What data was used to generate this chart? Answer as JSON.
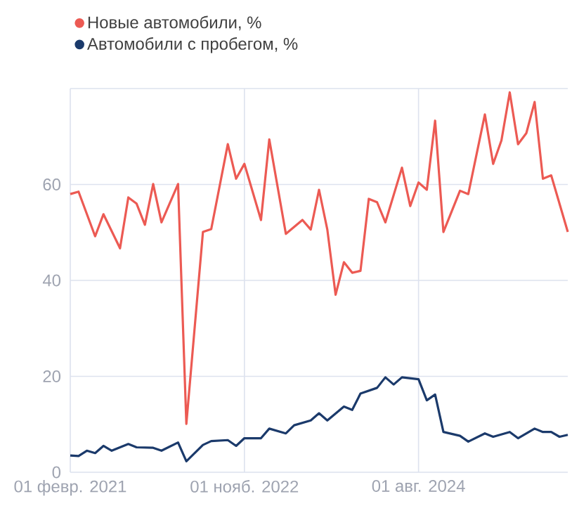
{
  "chart_data": {
    "type": "line",
    "x": [
      "2021-02",
      "2021-03",
      "2021-05",
      "2021-06",
      "2021-08",
      "2021-09",
      "2021-10",
      "2021-11",
      "2021-12",
      "2022-01",
      "2022-03",
      "2022-04",
      "2022-06",
      "2022-07",
      "2022-09",
      "2022-10",
      "2022-11",
      "2023-01",
      "2023-02",
      "2023-04",
      "2023-06",
      "2023-07",
      "2023-08",
      "2023-09",
      "2023-10",
      "2023-11",
      "2023-12",
      "2024-01",
      "2024-02",
      "2024-03",
      "2024-04",
      "2024-06",
      "2024-07",
      "2024-08",
      "2024-09",
      "2024-10",
      "2024-11",
      "2025-01",
      "2025-02",
      "2025-04",
      "2025-05",
      "2025-06",
      "2025-07",
      "2025-08",
      "2025-09",
      "2025-10",
      "2025-11",
      "2025-12",
      "2026-02"
    ],
    "series": [
      {
        "name": "Новые автомобили, %",
        "color": "#ec5a53",
        "values": [
          58.0,
          58.5,
          49.2,
          53.8,
          46.7,
          57.3,
          56.0,
          51.6,
          60.1,
          52.1,
          60.1,
          10.1,
          50.1,
          50.7,
          68.4,
          61.2,
          64.3,
          52.6,
          69.4,
          49.7,
          52.6,
          50.6,
          58.9,
          50.6,
          37.0,
          43.8,
          41.6,
          42.0,
          57.0,
          56.3,
          52.1,
          63.5,
          55.5,
          60.4,
          58.9,
          73.3,
          50.1,
          58.7,
          58.0,
          74.6,
          64.3,
          69.2,
          79.2,
          68.4,
          70.7,
          77.2,
          61.2,
          61.9,
          50.1
        ]
      },
      {
        "name": "Автомобили с пробегом, %",
        "color": "#1b3a6b",
        "x": [
          "2021-02",
          "2021-03",
          "2021-04",
          "2021-05",
          "2021-06",
          "2021-07",
          "2021-09",
          "2021-10",
          "2021-12",
          "2022-01",
          "2022-03",
          "2022-04",
          "2022-06",
          "2022-07",
          "2022-09",
          "2022-10",
          "2022-11",
          "2023-01",
          "2023-02",
          "2023-04",
          "2023-05",
          "2023-07",
          "2023-08",
          "2023-09",
          "2023-11",
          "2023-12",
          "2024-01",
          "2024-03",
          "2024-04",
          "2024-05",
          "2024-06",
          "2024-08",
          "2024-09",
          "2024-10",
          "2024-11",
          "2025-01",
          "2025-02",
          "2025-04",
          "2025-05",
          "2025-07",
          "2025-08",
          "2025-10",
          "2025-11",
          "2025-12",
          "2026-01",
          "2026-02"
        ],
        "values": [
          3.5,
          3.4,
          4.5,
          4.0,
          5.5,
          4.5,
          5.9,
          5.2,
          5.1,
          4.5,
          6.2,
          2.3,
          5.7,
          6.5,
          6.7,
          5.5,
          7.1,
          7.1,
          9.1,
          8.1,
          9.8,
          10.8,
          12.3,
          10.8,
          13.7,
          13.0,
          16.4,
          17.6,
          19.8,
          18.3,
          19.8,
          19.4,
          15.0,
          16.2,
          8.4,
          7.6,
          6.4,
          8.1,
          7.4,
          8.4,
          7.1,
          9.1,
          8.4,
          8.4,
          7.4,
          7.8
        ]
      }
    ],
    "xlim": [
      "2021-02",
      "2026-02"
    ],
    "xticks": [
      {
        "value": "2021-02",
        "label": "01 февр. 2021"
      },
      {
        "value": "2022-11",
        "label": "01 нояб. 2022"
      },
      {
        "value": "2024-08",
        "label": "01 авг. 2024"
      }
    ],
    "ylim": [
      0,
      80
    ],
    "yticks": [
      0,
      20,
      40,
      60,
      {
        "value": 80,
        "label": null
      }
    ],
    "grid": true,
    "legend": "top left",
    "marker": "none",
    "line_style": "solid"
  }
}
